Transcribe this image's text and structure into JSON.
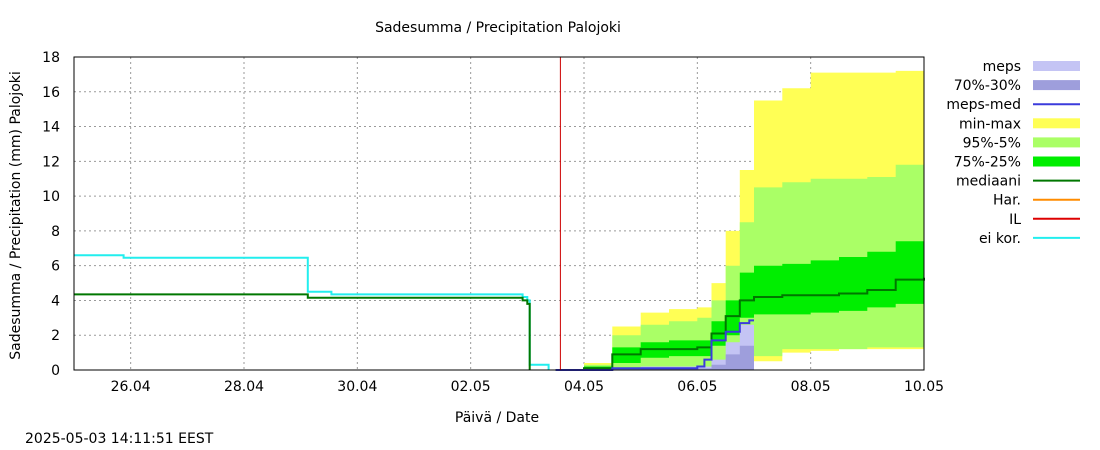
{
  "chart_data": {
    "type": "area",
    "title": "Sadesumma / Precipitation  Palojoki",
    "xlabel": "Päivä / Date",
    "ylabel": "Sadesumma / Precipitation (mm)  Palojoki",
    "ylim": [
      0,
      18
    ],
    "xlim": [
      "2025-04-25",
      "2025-05-10"
    ],
    "x_ticks": [
      "26.04",
      "28.04",
      "30.04",
      "02.05",
      "04.05",
      "06.05",
      "08.05",
      "10.05"
    ],
    "y_ticks": [
      0,
      2,
      4,
      6,
      8,
      10,
      12,
      14,
      16,
      18
    ],
    "grid": true,
    "legend_position": "right",
    "forecast_start": "2025-05-03 14:00",
    "legend": [
      {
        "label": "meps",
        "kind": "box",
        "color": "#c4c4f4"
      },
      {
        "label": "70%-30%",
        "kind": "box",
        "color": "#9e9edc"
      },
      {
        "label": "meps-med",
        "kind": "line",
        "color": "#3b3bdc"
      },
      {
        "label": "min-max",
        "kind": "box",
        "color": "#ffff55"
      },
      {
        "label": "95%-5%",
        "kind": "box",
        "color": "#aaff66"
      },
      {
        "label": "75%-25%",
        "kind": "box",
        "color": "#00ee00"
      },
      {
        "label": "mediaani",
        "kind": "line",
        "color": "#007700"
      },
      {
        "label": "Har.",
        "kind": "line",
        "color": "#ff8c00"
      },
      {
        "label": "IL",
        "kind": "line",
        "color": "#dd0000"
      },
      {
        "label": "ei kor.",
        "kind": "line",
        "color": "#22eeee"
      }
    ],
    "series": [
      {
        "name": "ei kor.",
        "type": "line",
        "color": "#22eeee",
        "points": [
          [
            "2025-04-25",
            6.6
          ],
          [
            "2025-04-25 20:00",
            6.6
          ],
          [
            "2025-04-25 21:00",
            6.45
          ],
          [
            "2025-04-29",
            6.45
          ],
          [
            "2025-04-29 03:00",
            4.5
          ],
          [
            "2025-04-29 12:00",
            4.5
          ],
          [
            "2025-04-29 13:00",
            4.35
          ],
          [
            "2025-05-02 18:00",
            4.35
          ],
          [
            "2025-05-02 22:00",
            4.2
          ],
          [
            "2025-05-03",
            4.0
          ],
          [
            "2025-05-03 01:00",
            0.3
          ],
          [
            "2025-05-03 08:00",
            0.3
          ],
          [
            "2025-05-03 09:00",
            0.0
          ]
        ]
      },
      {
        "name": "mediaani (observed)",
        "type": "line",
        "color": "#007700",
        "points": [
          [
            "2025-04-25",
            4.35
          ],
          [
            "2025-04-29",
            4.35
          ],
          [
            "2025-04-29 03:00",
            4.15
          ],
          [
            "2025-05-02 18:00",
            4.15
          ],
          [
            "2025-05-02 22:00",
            4.0
          ],
          [
            "2025-05-03",
            3.8
          ],
          [
            "2025-05-03 01:00",
            0.0
          ]
        ]
      },
      {
        "name": "min-max",
        "type": "band",
        "color": "#ffff55",
        "x": [
          "2025-05-03 12:00",
          "2025-05-04",
          "2025-05-04 12:00",
          "2025-05-05",
          "2025-05-05 12:00",
          "2025-05-06",
          "2025-05-06 06:00",
          "2025-05-06 12:00",
          "2025-05-06 18:00",
          "2025-05-07",
          "2025-05-07 12:00",
          "2025-05-08",
          "2025-05-08 12:00",
          "2025-05-09",
          "2025-05-09 12:00",
          "2025-05-10"
        ],
        "low": [
          0,
          0,
          0,
          0,
          0,
          0,
          0,
          0,
          0.2,
          0.5,
          1.0,
          1.1,
          1.2,
          1.2,
          1.2,
          1.2
        ],
        "high": [
          0,
          0.4,
          2.5,
          3.3,
          3.5,
          3.6,
          5.0,
          8.0,
          11.5,
          15.5,
          16.2,
          17.1,
          17.1,
          17.1,
          17.2,
          17.3
        ]
      },
      {
        "name": "95%-5%",
        "type": "band",
        "color": "#aaff66",
        "x": [
          "2025-05-03 12:00",
          "2025-05-04",
          "2025-05-04 12:00",
          "2025-05-05",
          "2025-05-05 12:00",
          "2025-05-06",
          "2025-05-06 06:00",
          "2025-05-06 12:00",
          "2025-05-06 18:00",
          "2025-05-07",
          "2025-05-07 12:00",
          "2025-05-08",
          "2025-05-08 12:00",
          "2025-05-09",
          "2025-05-09 12:00",
          "2025-05-10"
        ],
        "low": [
          0,
          0,
          0,
          0,
          0,
          0,
          0,
          0,
          0.4,
          0.8,
          1.2,
          1.2,
          1.2,
          1.3,
          1.3,
          1.3
        ],
        "high": [
          0,
          0.3,
          2.0,
          2.6,
          2.8,
          3.0,
          4.0,
          6.0,
          8.5,
          10.5,
          10.8,
          11.0,
          11.0,
          11.1,
          11.8,
          13.2
        ]
      },
      {
        "name": "75%-25%",
        "type": "band",
        "color": "#00ee00",
        "x": [
          "2025-05-03 12:00",
          "2025-05-04",
          "2025-05-04 12:00",
          "2025-05-05",
          "2025-05-05 12:00",
          "2025-05-06",
          "2025-05-06 06:00",
          "2025-05-06 12:00",
          "2025-05-06 18:00",
          "2025-05-07",
          "2025-05-07 12:00",
          "2025-05-08",
          "2025-05-08 12:00",
          "2025-05-09",
          "2025-05-09 12:00",
          "2025-05-10"
        ],
        "low": [
          0,
          0,
          0.4,
          0.7,
          0.8,
          0.8,
          1.4,
          2.0,
          3.0,
          3.2,
          3.2,
          3.3,
          3.4,
          3.6,
          3.8,
          4.0
        ],
        "high": [
          0,
          0.2,
          1.3,
          1.6,
          1.7,
          1.7,
          2.8,
          4.0,
          5.6,
          6.0,
          6.1,
          6.3,
          6.5,
          6.8,
          7.4,
          7.8
        ]
      },
      {
        "name": "mediaani",
        "type": "line",
        "color": "#007700",
        "points": [
          [
            "2025-05-03 12:00",
            0.0
          ],
          [
            "2025-05-04",
            0.1
          ],
          [
            "2025-05-04 12:00",
            0.9
          ],
          [
            "2025-05-05",
            1.2
          ],
          [
            "2025-05-05 12:00",
            1.2
          ],
          [
            "2025-05-06",
            1.3
          ],
          [
            "2025-05-06 06:00",
            2.1
          ],
          [
            "2025-05-06 12:00",
            3.1
          ],
          [
            "2025-05-06 18:00",
            4.0
          ],
          [
            "2025-05-07",
            4.2
          ],
          [
            "2025-05-07 12:00",
            4.3
          ],
          [
            "2025-05-08",
            4.3
          ],
          [
            "2025-05-08 12:00",
            4.4
          ],
          [
            "2025-05-09",
            4.6
          ],
          [
            "2025-05-09 12:00",
            5.2
          ],
          [
            "2025-05-10",
            5.3
          ]
        ]
      },
      {
        "name": "meps",
        "type": "band",
        "color": "#c4c4f4",
        "x": [
          "2025-05-04",
          "2025-05-04 12:00",
          "2025-05-05",
          "2025-05-05 12:00",
          "2025-05-06",
          "2025-05-06 06:00",
          "2025-05-06 12:00",
          "2025-05-06 18:00",
          "2025-05-07"
        ],
        "low": [
          0,
          0,
          0,
          0,
          0,
          0,
          0,
          0,
          0
        ],
        "high": [
          0,
          0.1,
          0.2,
          0.2,
          0.2,
          0.6,
          1.6,
          2.6,
          2.9
        ]
      },
      {
        "name": "70%-30%",
        "type": "band",
        "color": "#9e9edc",
        "x": [
          "2025-05-04",
          "2025-05-04 12:00",
          "2025-05-05",
          "2025-05-05 12:00",
          "2025-05-06",
          "2025-05-06 06:00",
          "2025-05-06 12:00",
          "2025-05-06 18:00",
          "2025-05-07"
        ],
        "low": [
          0,
          0,
          0,
          0,
          0,
          0,
          0,
          0,
          0
        ],
        "high": [
          0,
          0.05,
          0.1,
          0.1,
          0.1,
          0.3,
          0.9,
          1.4,
          1.6
        ]
      },
      {
        "name": "meps-med",
        "type": "line",
        "color": "#3b3bdc",
        "points": [
          [
            "2025-05-03 12:00",
            0.0
          ],
          [
            "2025-05-04",
            0.0
          ],
          [
            "2025-05-04 12:00",
            0.1
          ],
          [
            "2025-05-05",
            0.1
          ],
          [
            "2025-05-05 12:00",
            0.1
          ],
          [
            "2025-05-06",
            0.2
          ],
          [
            "2025-05-06 03:00",
            0.6
          ],
          [
            "2025-05-06 06:00",
            1.7
          ],
          [
            "2025-05-06 12:00",
            2.2
          ],
          [
            "2025-05-06 18:00",
            2.7
          ],
          [
            "2025-05-06 22:00",
            2.85
          ],
          [
            "2025-05-07",
            2.85
          ]
        ]
      }
    ]
  },
  "footer": {
    "timestamp": "2025-05-03 14:11:51 EEST"
  }
}
